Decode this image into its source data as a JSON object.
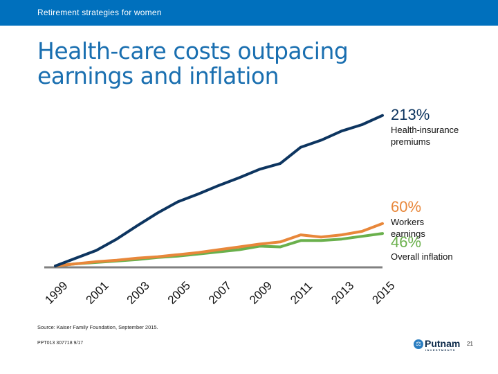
{
  "header": {
    "section_title": "Retirement strategies for women"
  },
  "slide": {
    "title_line1": "Health-care costs outpacing",
    "title_line2": "earnings and inflation",
    "source": "Source: Kaiser Family Foundation, September 2015.",
    "code": "PPT013  307718  9/17",
    "page_number": "21",
    "logo": {
      "name": "Putnam",
      "sub": "INVESTMENTS",
      "icon": "scales-icon"
    }
  },
  "colors": {
    "topbar": "#0070bd",
    "title": "#1a6fb0",
    "health": "#0d3560",
    "earnings": "#e8873a",
    "inflation": "#6ab04c",
    "axis": "#808080"
  },
  "chart_data": {
    "type": "line",
    "title": "Health-care costs outpacing earnings and inflation",
    "xlabel": "",
    "ylabel": "",
    "x": [
      1999,
      2000,
      2001,
      2002,
      2003,
      2004,
      2005,
      2006,
      2007,
      2008,
      2009,
      2010,
      2011,
      2012,
      2013,
      2014,
      2015
    ],
    "tick_labels": [
      "1999",
      "2001",
      "2003",
      "2005",
      "2007",
      "2009",
      "2011",
      "2013",
      "2015"
    ],
    "ylim": [
      0,
      220
    ],
    "grid": false,
    "series": [
      {
        "name": "Health-insurance premiums",
        "label_value": "213%",
        "label_text": [
          "Health-insurance",
          "premiums"
        ],
        "values": [
          0,
          11,
          22,
          38,
          57,
          75,
          91,
          102,
          114,
          125,
          137,
          145,
          168,
          178,
          191,
          200,
          213
        ]
      },
      {
        "name": "Workers earnings",
        "label_value": "60%",
        "label_text": [
          "Workers",
          "earnings"
        ],
        "values": [
          0,
          3,
          6,
          8,
          11,
          13,
          16,
          19,
          23,
          27,
          31,
          34,
          44,
          41,
          44,
          49,
          60
        ]
      },
      {
        "name": "Overall inflation",
        "label_value": "46%",
        "label_text": [
          "Overall inflation"
        ],
        "values": [
          0,
          3,
          5,
          7,
          9,
          12,
          14,
          17,
          20,
          23,
          28,
          27,
          36,
          36,
          38,
          42,
          46
        ]
      }
    ]
  }
}
